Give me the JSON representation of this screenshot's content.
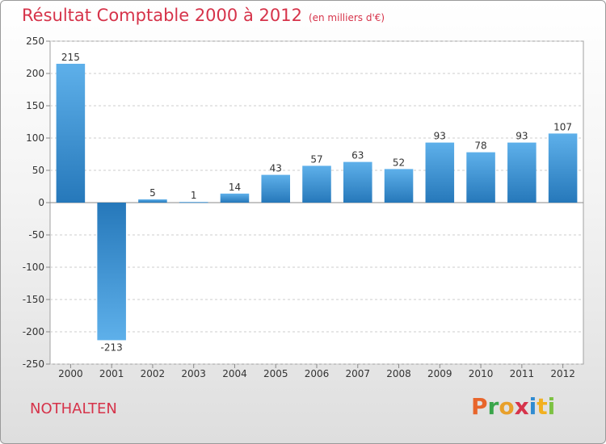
{
  "header": {
    "title": "Résultat Comptable 2000 à 2012",
    "unit": "(en milliers d'€)"
  },
  "footer": {
    "city": "NOTHALTEN",
    "logo_letters": [
      "P",
      "r",
      "o",
      "x",
      "i",
      "t",
      "i"
    ],
    "logo_colors": [
      "#e8652b",
      "#3aa54a",
      "#e8a02b",
      "#d6334a",
      "#2f8bd1",
      "#f2b020",
      "#7cc242"
    ]
  },
  "colors": {
    "title": "#d6334a",
    "bar_light": "#5eb0ea",
    "bar_dark": "#2678ba",
    "plot_bg": "#ffffff",
    "grid": "#cccccc"
  },
  "chart_data": {
    "type": "bar",
    "title": "Résultat Comptable 2000 à 2012",
    "xlabel": "",
    "ylabel": "",
    "categories": [
      "2000",
      "2001",
      "2002",
      "2003",
      "2004",
      "2005",
      "2006",
      "2007",
      "2008",
      "2009",
      "2010",
      "2011",
      "2012"
    ],
    "values": [
      215,
      -213,
      5,
      1,
      14,
      43,
      57,
      63,
      52,
      93,
      78,
      93,
      107
    ],
    "data_labels": [
      "215",
      "-213",
      "5",
      "1",
      "14",
      "43",
      "57",
      "63",
      "52",
      "93",
      "78",
      "93",
      "107"
    ],
    "ylim": [
      -250,
      250
    ],
    "yticks": [
      250,
      200,
      150,
      100,
      50,
      0,
      -50,
      -100,
      -150,
      -200,
      -250
    ],
    "ytick_labels": [
      "250",
      "200",
      "150",
      "100",
      "50",
      "0",
      "-50",
      "-100",
      "-150",
      "-200",
      "-250"
    ],
    "grid": true,
    "legend": "none"
  }
}
